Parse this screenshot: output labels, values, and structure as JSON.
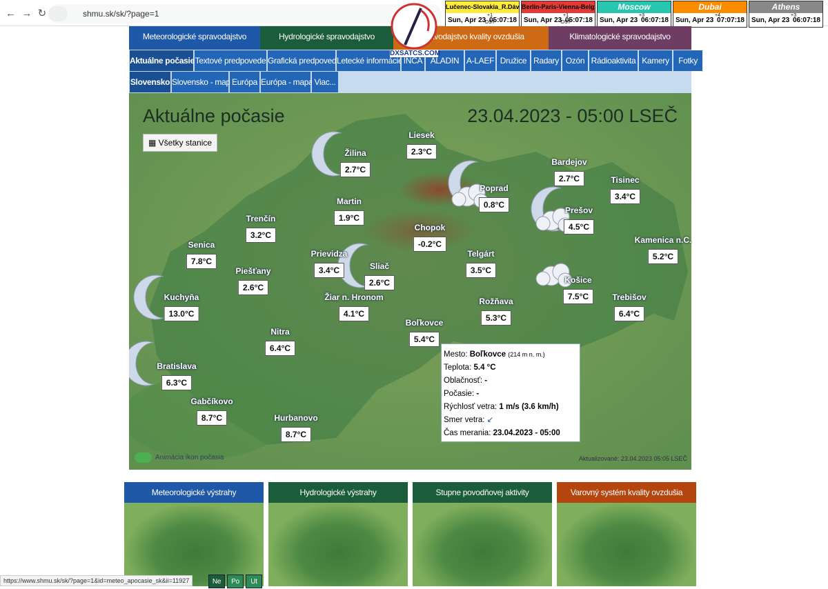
{
  "browser": {
    "url": "shmu.sk/sk/?page=1",
    "status_url": "https://www.shmu.sk/sk/?page=1&id=meteo_apocasie_sk&ii=11927"
  },
  "clocks": [
    {
      "city": "Lučenec-Slovakia_R.Dávid",
      "date": "Sun, Apr 23",
      "offset": "+1",
      "dst": "DST",
      "time": "05:07:18"
    },
    {
      "city": "Berlin-Paris-Vienna-Belgrade",
      "date": "Sun, Apr 23",
      "offset": "+1",
      "dst": "DST",
      "time": "05:07:18"
    },
    {
      "city": "Moscow",
      "date": "Sun, Apr 23",
      "offset": "+3",
      "time": "06:07:18"
    },
    {
      "city": "Dubai",
      "date": "Sun, Apr 23",
      "offset": "+4",
      "time": "07:07:18"
    },
    {
      "city": "Athens",
      "date": "Sun, Apr 23",
      "offset": "+3",
      "time": "06:07:18"
    }
  ],
  "logo": "DXSATCS.COM",
  "main_tabs": [
    "Meteorologické spravodajstvo",
    "Hydrologické spravodajstvo",
    "Spravodajstvo kvality ovzdušia",
    "Klimatologické spravodajstvo"
  ],
  "sub_tabs": [
    "Aktuálne počasie",
    "Textové predpovede",
    "Grafická predpoveď",
    "Letecké informácie",
    "INCA",
    "ALADIN",
    "A-LAEF",
    "Družice",
    "Radary",
    "Ozón",
    "Rádioaktivita",
    "Kamery",
    "Fotky"
  ],
  "region_tabs": [
    "Slovensko",
    "Slovensko - mapa",
    "Európa",
    "Európa - mapa",
    "Viac..."
  ],
  "map": {
    "title": "Aktuálne počasie",
    "datetime": "23.04.2023 - 05:00 LSEČ",
    "button": "Všetky stanice",
    "stations": [
      {
        "name": "Žilina",
        "temp": "2.7°C"
      },
      {
        "name": "Liesek",
        "temp": "2.3°C"
      },
      {
        "name": "Poprad",
        "temp": "0.8°C"
      },
      {
        "name": "Bardejov",
        "temp": "2.7°C"
      },
      {
        "name": "Tisinec",
        "temp": "3.4°C"
      },
      {
        "name": "Prešov",
        "temp": "4.5°C"
      },
      {
        "name": "Kamenica n.C.",
        "temp": "5.2°C"
      },
      {
        "name": "Martin",
        "temp": "1.9°C"
      },
      {
        "name": "Trenčín",
        "temp": "3.2°C"
      },
      {
        "name": "Chopok",
        "temp": "-0.2°C"
      },
      {
        "name": "Senica",
        "temp": "7.8°C"
      },
      {
        "name": "Prievidza",
        "temp": "3.4°C"
      },
      {
        "name": "Sliač",
        "temp": "2.6°C"
      },
      {
        "name": "Telgárt",
        "temp": "3.5°C"
      },
      {
        "name": "Piešťany",
        "temp": "2.6°C"
      },
      {
        "name": "Košice",
        "temp": "7.5°C"
      },
      {
        "name": "Kuchyňa",
        "temp": "13.0°C"
      },
      {
        "name": "Žiar n. Hronom",
        "temp": "4.1°C"
      },
      {
        "name": "Rožňava",
        "temp": "5.3°C"
      },
      {
        "name": "Trebišov",
        "temp": "6.4°C"
      },
      {
        "name": "Boľkovce",
        "temp": "5.4°C"
      },
      {
        "name": "Nitra",
        "temp": "6.4°C"
      },
      {
        "name": "Bratislava",
        "temp": "6.3°C"
      },
      {
        "name": "Gabčíkovo",
        "temp": "8.7°C"
      },
      {
        "name": "Hurbanovo",
        "temp": "8.7°C"
      }
    ],
    "tooltip": [
      {
        "label": "Mesto:",
        "value": "Boľkovce",
        "extra": "(214 m n. m.)"
      },
      {
        "label": "Teplota:",
        "value": "5.4 °C"
      },
      {
        "label": "Oblačnosť:",
        "value": "-"
      },
      {
        "label": "Počasie:",
        "value": "-"
      },
      {
        "label": "Rýchlosť vetra:",
        "value": "1 m/s (3.6 km/h)"
      },
      {
        "label": "Smer vetra:"
      },
      {
        "label": "Čas merania:",
        "value": "23.04.2023 - 05:00"
      }
    ],
    "toggle": "Animácia ikon počasia",
    "updated": "Aktualizované: 23.04.2023 05:05 LSEČ"
  },
  "panels": [
    "Meteorologické výstrahy",
    "Hydrologické výstrahy",
    "Stupne povodňovej aktivity",
    "Varovný systém kvality ovzdušia"
  ],
  "days": [
    "Ne",
    "Po",
    "Ut"
  ]
}
